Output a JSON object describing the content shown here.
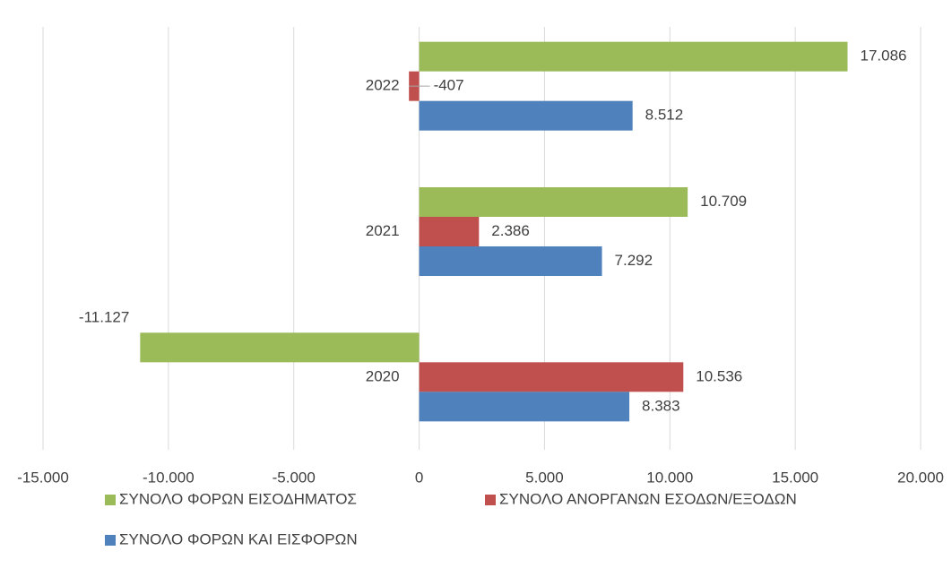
{
  "chart_data": {
    "type": "hbar",
    "categories": [
      "2020",
      "2021",
      "2022"
    ],
    "series": [
      {
        "name": "ΣΥΝΟΛΟ ΦΟΡΩΝ ΕΙΣΟΔΗΜΑΤΟΣ",
        "color": "#9bbb59",
        "values": [
          -11127,
          10709,
          17086
        ],
        "value_labels": [
          "-11.127",
          "10.709",
          "17.086"
        ]
      },
      {
        "name": "ΣΥΝΟΛΟ ΑΝΟΡΓΑΝΩΝ ΕΣΟΔΩΝ/ΕΞΟΔΩΝ",
        "color": "#c0504d",
        "values": [
          10536,
          2386,
          -407
        ],
        "value_labels": [
          "10.536",
          "2.386",
          "-407"
        ]
      },
      {
        "name": "ΣΥΝΟΛΟ ΦΟΡΩΝ ΚΑΙ ΕΙΣΦΟΡΩΝ",
        "color": "#4f81bd",
        "values": [
          8383,
          7292,
          8512
        ],
        "value_labels": [
          "8.383",
          "7.292",
          "8.512"
        ]
      }
    ],
    "xlim": [
      -15000,
      20000
    ],
    "xticks": [
      {
        "value": -15000,
        "label": "-15.000"
      },
      {
        "value": -10000,
        "label": "-10.000"
      },
      {
        "value": -5000,
        "label": "-5.000"
      },
      0,
      {
        "value": 5000,
        "label": "5.000"
      },
      {
        "value": 10000,
        "label": "10.000"
      },
      {
        "value": 15000,
        "label": "15.000"
      },
      {
        "value": 20000,
        "label": "20.000"
      }
    ],
    "grid": true
  }
}
